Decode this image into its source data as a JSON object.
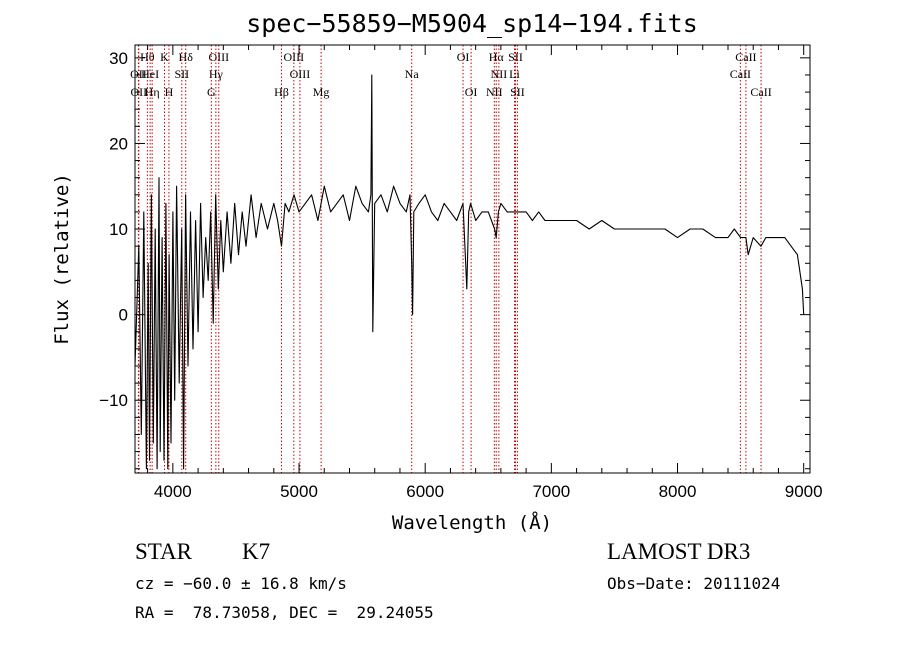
{
  "chart_data": {
    "type": "line",
    "title": "spec−55859−M5904_sp14−194.fits",
    "xlabel": "Wavelength (Å)",
    "ylabel": "Flux (relative)",
    "xlim": [
      3700,
      9050
    ],
    "ylim": [
      -18.5,
      31.5
    ],
    "x_ticks": [
      {
        "value": 4000,
        "label": "4000"
      },
      {
        "value": 5000,
        "label": "5000"
      },
      {
        "value": 6000,
        "label": "6000"
      },
      {
        "value": 7000,
        "label": "7000"
      },
      {
        "value": 8000,
        "label": "8000"
      },
      {
        "value": 9000,
        "label": "9000"
      }
    ],
    "y_ticks": [
      {
        "value": 30,
        "label": "30"
      },
      {
        "value": 20,
        "label": "20"
      },
      {
        "value": 10,
        "label": "10"
      },
      {
        "value": 0,
        "label": "0"
      },
      {
        "value": -10,
        "label": "−10"
      }
    ],
    "grid": false,
    "series": [
      {
        "name": "flux",
        "color": "#000000",
        "x": [
          3700,
          3730,
          3750,
          3770,
          3790,
          3805,
          3815,
          3830,
          3845,
          3860,
          3875,
          3890,
          3900,
          3915,
          3930,
          3945,
          3960,
          3970,
          3985,
          4000,
          4015,
          4030,
          4050,
          4070,
          4085,
          4101,
          4120,
          4140,
          4160,
          4180,
          4200,
          4220,
          4240,
          4260,
          4280,
          4300,
          4320,
          4340,
          4360,
          4380,
          4400,
          4430,
          4460,
          4490,
          4520,
          4550,
          4580,
          4620,
          4660,
          4700,
          4750,
          4800,
          4830,
          4861,
          4890,
          4920,
          4960,
          5000,
          5050,
          5100,
          5150,
          5200,
          5250,
          5300,
          5350,
          5400,
          5450,
          5500,
          5550,
          5570,
          5577,
          5585,
          5600,
          5650,
          5700,
          5750,
          5800,
          5850,
          5880,
          5893,
          5900,
          5910,
          5950,
          6000,
          6050,
          6100,
          6150,
          6200,
          6250,
          6300,
          6330,
          6345,
          6360,
          6400,
          6450,
          6500,
          6550,
          6563,
          6580,
          6600,
          6650,
          6700,
          6750,
          6800,
          6850,
          6900,
          6950,
          7000,
          7100,
          7200,
          7300,
          7400,
          7500,
          7600,
          7700,
          7800,
          7900,
          8000,
          8100,
          8200,
          8300,
          8400,
          8450,
          8500,
          8542,
          8560,
          8600,
          8662,
          8700,
          8750,
          8800,
          8850,
          8900,
          8950,
          8990,
          9000
        ],
        "y": [
          -6,
          8,
          -14,
          12,
          -18,
          6,
          -17,
          14,
          -15,
          10,
          -18,
          16,
          -16,
          9,
          -17,
          13,
          -18,
          7,
          -15,
          12,
          -10,
          15,
          -8,
          10,
          -18,
          14,
          -6,
          12,
          -4,
          11,
          -2,
          13,
          2,
          9,
          4,
          12,
          -1,
          14,
          3,
          11,
          5,
          12,
          6,
          13,
          7,
          12,
          8,
          14,
          9,
          13,
          10,
          13,
          11,
          8,
          13,
          12,
          14,
          12,
          13,
          14,
          11,
          15,
          12,
          13,
          14,
          11,
          15,
          13,
          12,
          14,
          28,
          -2,
          13,
          14,
          12,
          15,
          13,
          12,
          14,
          6,
          0,
          12,
          13,
          14,
          12,
          11,
          13,
          12,
          11,
          13,
          3,
          12,
          13,
          11,
          12,
          12,
          10,
          9,
          12,
          13,
          12,
          12,
          12,
          12,
          11,
          12,
          11,
          11,
          11,
          11,
          10,
          11,
          10,
          10,
          10,
          10,
          10,
          9,
          10,
          10,
          9,
          9,
          10,
          9,
          9,
          7,
          9,
          8,
          9,
          9,
          9,
          9,
          8,
          7,
          3,
          0
        ]
      }
    ],
    "line_markers": [
      {
        "name": "Hθ",
        "wavelength": 3798,
        "row": 0
      },
      {
        "name": "OII",
        "wavelength": 3727,
        "row": 1
      },
      {
        "name": "OII",
        "wavelength": 3730,
        "row": 2
      },
      {
        "name": "HeI",
        "wavelength": 3820,
        "row": 1
      },
      {
        "name": "Hη",
        "wavelength": 3836,
        "row": 2
      },
      {
        "name": "K",
        "wavelength": 3934,
        "row": 0
      },
      {
        "name": "SII",
        "wavelength": 4071,
        "row": 1
      },
      {
        "name": "H",
        "wavelength": 3969,
        "row": 2
      },
      {
        "name": "Hδ",
        "wavelength": 4102,
        "row": 0
      },
      {
        "name": "OIII",
        "wavelength": 4364,
        "row": 0
      },
      {
        "name": "Hγ",
        "wavelength": 4341,
        "row": 1
      },
      {
        "name": "G",
        "wavelength": 4305,
        "row": 2
      },
      {
        "name": "Hβ",
        "wavelength": 4861,
        "row": 2
      },
      {
        "name": "OIII",
        "wavelength": 4959,
        "row": 0
      },
      {
        "name": "OIII",
        "wavelength": 5007,
        "row": 1
      },
      {
        "name": "Mg",
        "wavelength": 5175,
        "row": 2
      },
      {
        "name": "Na",
        "wavelength": 5893,
        "row": 1
      },
      {
        "name": "OI",
        "wavelength": 6300,
        "row": 0
      },
      {
        "name": "OI",
        "wavelength": 6364,
        "row": 2
      },
      {
        "name": "Hα",
        "wavelength": 6563,
        "row": 0
      },
      {
        "name": "SII",
        "wavelength": 6716,
        "row": 0
      },
      {
        "name": "NII",
        "wavelength": 6584,
        "row": 1
      },
      {
        "name": "Li",
        "wavelength": 6708,
        "row": 1
      },
      {
        "name": "NII",
        "wavelength": 6548,
        "row": 2
      },
      {
        "name": "SII",
        "wavelength": 6731,
        "row": 2
      },
      {
        "name": "CaII",
        "wavelength": 8542,
        "row": 0
      },
      {
        "name": "CaII",
        "wavelength": 8498,
        "row": 1
      },
      {
        "name": "CaII",
        "wavelength": 8662,
        "row": 2
      }
    ],
    "marker_color": "#cc0000"
  },
  "info": {
    "object_class": "STAR",
    "subclass": "K7",
    "survey": "LAMOST DR3",
    "redshift": "cz = −60.0 ± 16.8 km/s",
    "obs_date": "Obs−Date: 20111024",
    "coords": "RA =  78.73058, DEC =  29.24055"
  }
}
